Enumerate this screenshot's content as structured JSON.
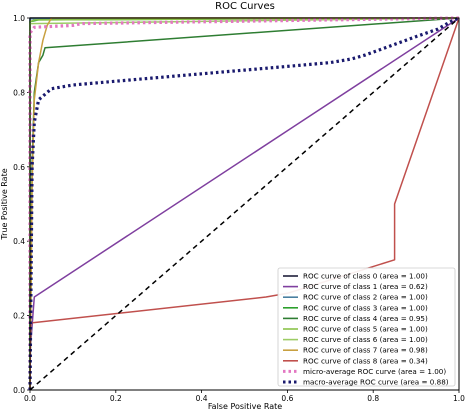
{
  "chart_data": {
    "type": "line",
    "title": "ROC Curves",
    "xlabel": "False Positive Rate",
    "ylabel": "True Positive Rate",
    "xlim": [
      0,
      1
    ],
    "ylim": [
      0,
      1
    ],
    "xticks": [
      "0.0",
      "0.2",
      "0.4",
      "0.6",
      "0.8",
      "1.0"
    ],
    "yticks": [
      "0.0",
      "0.2",
      "0.4",
      "0.6",
      "0.8",
      "1.0"
    ],
    "grid": false,
    "legend_position": "bottom-right",
    "series": [
      {
        "name": "ROC curve of class 0 (area = 1.00)",
        "color": "#1f1f3a",
        "style": "solid",
        "x": [
          0,
          0,
          1
        ],
        "y": [
          0,
          1,
          1
        ]
      },
      {
        "name": "ROC curve of class 1 (area = 0.62)",
        "color": "#7f3f9f",
        "style": "solid",
        "x": [
          0,
          0,
          0.01,
          1
        ],
        "y": [
          0,
          0.1,
          0.25,
          1
        ]
      },
      {
        "name": "ROC curve of class 2 (area = 1.00)",
        "color": "#4a7fa0",
        "style": "solid",
        "x": [
          0,
          0,
          1
        ],
        "y": [
          0,
          0.998,
          1
        ]
      },
      {
        "name": "ROC curve of class 3 (area = 1.00)",
        "color": "#2ca02c",
        "style": "solid",
        "x": [
          0,
          0,
          0.02,
          1
        ],
        "y": [
          0,
          0.99,
          0.995,
          1
        ]
      },
      {
        "name": "ROC curve of class 4 (area = 0.95)",
        "color": "#2e7d32",
        "style": "solid",
        "x": [
          0,
          0.005,
          0.01,
          0.02,
          0.03,
          0.035,
          1
        ],
        "y": [
          0,
          0.6,
          0.8,
          0.88,
          0.9,
          0.92,
          1
        ]
      },
      {
        "name": "ROC curve of class 5 (area = 1.00)",
        "color": "#8bc34a",
        "style": "solid",
        "x": [
          0,
          0,
          0.01,
          1
        ],
        "y": [
          0,
          0.99,
          0.995,
          1
        ]
      },
      {
        "name": "ROC curve of class 6 (area = 1.00)",
        "color": "#9ccc65",
        "style": "solid",
        "x": [
          0,
          0,
          1
        ],
        "y": [
          0,
          0.985,
          1
        ]
      },
      {
        "name": "ROC curve of class 7 (area = 0.98)",
        "color": "#c8a040",
        "style": "solid",
        "x": [
          0,
          0.005,
          0.01,
          0.02,
          0.03,
          0.04,
          0.05,
          1
        ],
        "y": [
          0,
          0.55,
          0.78,
          0.88,
          0.94,
          0.98,
          1,
          1
        ]
      },
      {
        "name": "ROC curve of class 8 (area = 0.34)",
        "color": "#c0504d",
        "style": "solid",
        "x": [
          0,
          0.001,
          0.55,
          0.6,
          0.85,
          0.85,
          1
        ],
        "y": [
          0,
          0.18,
          0.25,
          0.26,
          0.35,
          0.5,
          1
        ]
      },
      {
        "name": "micro-average ROC curve (area = 1.00)",
        "color": "#e377c2",
        "style": "dotted",
        "x": [
          0,
          0.0,
          0.01,
          0.1,
          0.12,
          1
        ],
        "y": [
          0,
          0.96,
          0.975,
          0.98,
          0.985,
          1
        ]
      },
      {
        "name": "macro-average ROC curve (area = 0.88)",
        "color": "#1a1a6e",
        "style": "dotted",
        "x": [
          0,
          0.005,
          0.01,
          0.02,
          0.03,
          0.05,
          0.1,
          0.2,
          0.3,
          0.4,
          0.5,
          0.6,
          0.7,
          0.75,
          0.78,
          0.9,
          0.95,
          0.98,
          1
        ],
        "y": [
          0,
          0.6,
          0.72,
          0.78,
          0.79,
          0.81,
          0.82,
          0.83,
          0.84,
          0.85,
          0.86,
          0.87,
          0.88,
          0.89,
          0.9,
          0.95,
          0.97,
          0.99,
          1
        ]
      },
      {
        "name": "",
        "color": "#000000",
        "style": "dashed",
        "x": [
          0,
          1
        ],
        "y": [
          0,
          1
        ]
      }
    ]
  }
}
